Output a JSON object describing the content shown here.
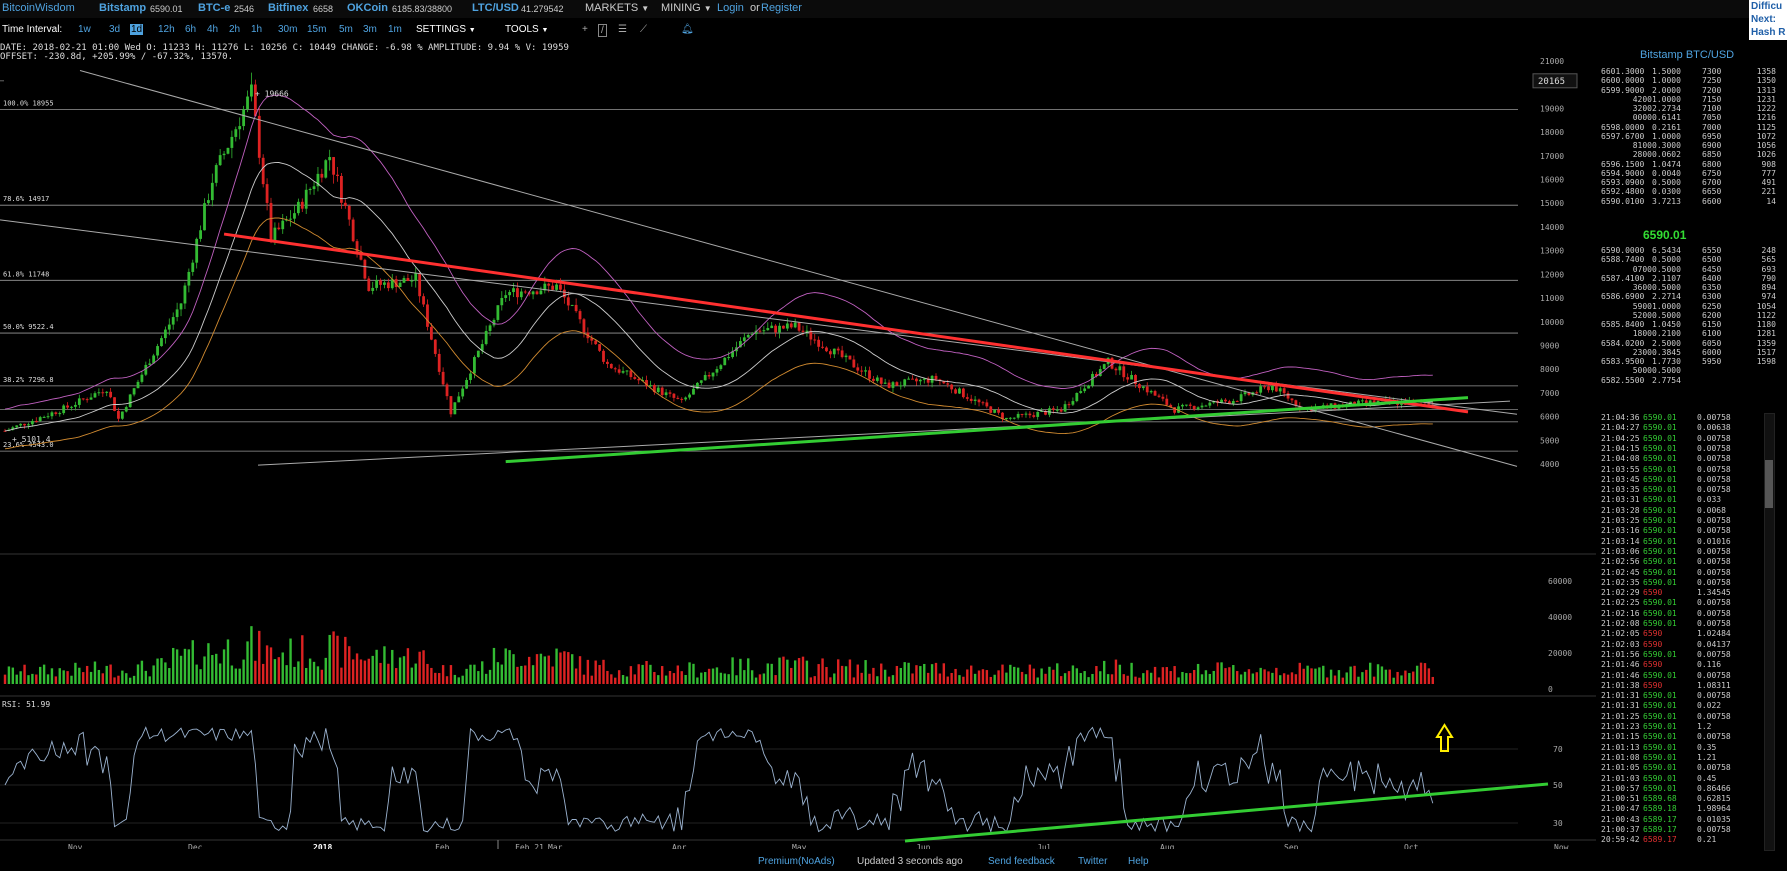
{
  "brand": "BitcoinWisdom",
  "tickers": [
    {
      "name": "Bitstamp",
      "value": "6590.01"
    },
    {
      "name": "BTC-e",
      "value": "2546"
    },
    {
      "name": "Bitfinex",
      "value": "6658"
    },
    {
      "name": "OKCoin",
      "value": "6185.83/38800"
    },
    {
      "name": "LTC/USD",
      "value": "41.279542"
    }
  ],
  "menu": {
    "markets": "MARKETS",
    "mining": "MINING",
    "login": "Login",
    "or": "or",
    "register": "Register"
  },
  "difficulty": {
    "line1": "Difficu",
    "line2": "Next:",
    "line3": "Hash R"
  },
  "toolbar": {
    "label": "Time Interval:",
    "intervals": [
      "1w",
      "3d",
      "1d",
      "12h",
      "6h",
      "4h",
      "2h",
      "1h",
      "30m",
      "15m",
      "5m",
      "3m",
      "1m"
    ],
    "selected": "1d",
    "settings": "SETTINGS",
    "tools": "TOOLS"
  },
  "info": {
    "line1": "DATE: 2018-02-21 01:00 Wed    O: 11233    H: 11276    L: 10256    C: 10449    CHANGE: -6.98 %    AMPLITUDE: 9.94 %    V: 19959",
    "line2": "OFFSET: -230.8d, +205.99% / -67.32%, 13570."
  },
  "chart_data": {
    "type": "line",
    "title": "Bitstamp BTC/USD",
    "interval": "1d",
    "price_axis": [
      21000,
      20000,
      19000,
      18000,
      17000,
      16000,
      15000,
      14000,
      13000,
      12000,
      11000,
      10000,
      9000,
      8000,
      7000,
      6000,
      5000,
      4000
    ],
    "price_ylim": [
      3500,
      21500
    ],
    "current_price_label": "20165",
    "volume_axis": [
      60000,
      40000,
      20000,
      0
    ],
    "rsi_label": "RSI: 51.99",
    "rsi_axis": [
      70,
      50,
      30
    ],
    "x_labels": [
      "Nov",
      "Dec",
      "2018",
      "Feb",
      "Feb 21",
      "Mar",
      "Apr",
      "May",
      "Jun",
      "Jul",
      "Aug",
      "Sep",
      "Oct",
      "Now"
    ],
    "fib_levels": [
      {
        "label": "100.0% 18955",
        "price": 18955
      },
      {
        "label": "78.6% 14917",
        "price": 14917
      },
      {
        "label": "61.8% 11748",
        "price": 11748
      },
      {
        "label": "50.0% 9522.4",
        "price": 9522.4
      },
      {
        "label": "38.2% 7296.8",
        "price": 7296.8
      },
      {
        "label": "23.6% 4543.0",
        "price": 4543.0
      }
    ],
    "annotations": [
      "19666",
      "5101.4"
    ],
    "price_path": [
      [
        "2017-10-15",
        5400
      ],
      [
        "2017-10-31",
        6400
      ],
      [
        "2017-11-10",
        7200
      ],
      [
        "2017-11-13",
        5900
      ],
      [
        "2017-11-20",
        8100
      ],
      [
        "2017-11-29",
        10800
      ],
      [
        "2017-12-07",
        16000
      ],
      [
        "2017-12-17",
        19666
      ],
      [
        "2017-12-22",
        13500
      ],
      [
        "2017-12-29",
        14800
      ],
      [
        "2018-01-06",
        17000
      ],
      [
        "2018-01-16",
        11500
      ],
      [
        "2018-01-28",
        11800
      ],
      [
        "2018-02-06",
        6200
      ],
      [
        "2018-02-20",
        11200
      ],
      [
        "2018-03-05",
        11500
      ],
      [
        "2018-03-18",
        8200
      ],
      [
        "2018-04-06",
        6600
      ],
      [
        "2018-04-24",
        9600
      ],
      [
        "2018-05-05",
        9800
      ],
      [
        "2018-05-28",
        7300
      ],
      [
        "2018-06-10",
        7600
      ],
      [
        "2018-06-28",
        5900
      ],
      [
        "2018-07-12",
        6300
      ],
      [
        "2018-07-24",
        8300
      ],
      [
        "2018-08-10",
        6300
      ],
      [
        "2018-08-25",
        6700
      ],
      [
        "2018-09-04",
        7300
      ],
      [
        "2018-09-12",
        6300
      ],
      [
        "2018-09-30",
        6600
      ],
      [
        "2018-10-15",
        6590
      ]
    ],
    "trendlines": [
      {
        "color": "#ff3030",
        "from": [
          "2017-12-10",
          13700
        ],
        "to": [
          "2018-10-24",
          6200
        ]
      },
      {
        "color": "#33cc33",
        "from": [
          "2018-02-20",
          4100
        ],
        "to": [
          "2018-10-24",
          6800
        ]
      }
    ]
  },
  "orderbook": {
    "title": "Bitstamp BTC/USD",
    "asks": [
      [
        "6601.3000",
        "1.5000",
        "7300",
        "1358"
      ],
      [
        "6600.0000",
        "1.0000",
        "7250",
        "1350"
      ],
      [
        "6599.9000",
        "2.0000",
        "7200",
        "1313"
      ],
      [
        "4200",
        "1.0000",
        "7150",
        "1231"
      ],
      [
        "3200",
        "2.2734",
        "7100",
        "1222"
      ],
      [
        "0000",
        "0.6141",
        "7050",
        "1216"
      ],
      [
        "6598.0000",
        "0.2161",
        "7000",
        "1125"
      ],
      [
        "6597.6700",
        "1.0000",
        "6950",
        "1072"
      ],
      [
        "8100",
        "0.3000",
        "6900",
        "1056"
      ],
      [
        "2800",
        "0.0602",
        "6850",
        "1026"
      ],
      [
        "6596.1500",
        "1.0474",
        "6800",
        "908"
      ],
      [
        "6594.9000",
        "0.0040",
        "6750",
        "777"
      ],
      [
        "6593.0900",
        "0.5000",
        "6700",
        "491"
      ],
      [
        "6592.4800",
        "0.0300",
        "6650",
        "221"
      ],
      [
        "6590.0100",
        "3.7213",
        "6600",
        "14"
      ]
    ],
    "last_price": "6590.01",
    "bids": [
      [
        "6590.0000",
        "6.5434",
        "6550",
        "248"
      ],
      [
        "6588.7400",
        "0.5000",
        "6500",
        "565"
      ],
      [
        "0700",
        "0.5000",
        "6450",
        "693"
      ],
      [
        "6587.4100",
        "2.1107",
        "6400",
        "790"
      ],
      [
        "3600",
        "0.5000",
        "6350",
        "894"
      ],
      [
        "6586.6900",
        "2.2714",
        "6300",
        "974"
      ],
      [
        "5900",
        "1.0000",
        "6250",
        "1054"
      ],
      [
        "5200",
        "0.5000",
        "6200",
        "1122"
      ],
      [
        "6585.8400",
        "1.0450",
        "6150",
        "1180"
      ],
      [
        "1800",
        "0.2100",
        "6100",
        "1281"
      ],
      [
        "6584.0200",
        "2.5000",
        "6050",
        "1359"
      ],
      [
        "2300",
        "0.3845",
        "6000",
        "1517"
      ],
      [
        "6583.9500",
        "1.7730",
        "5950",
        "1598"
      ],
      [
        "5000",
        "0.5000",
        "",
        ""
      ],
      [
        "6582.5500",
        "2.7754",
        "",
        ""
      ]
    ]
  },
  "trades": [
    [
      "21:04:36",
      "6590.01",
      "0.00758",
      "up"
    ],
    [
      "21:04:27",
      "6590.01",
      "0.00638",
      "up"
    ],
    [
      "21:04:25",
      "6590.01",
      "0.00758",
      "up"
    ],
    [
      "21:04:15",
      "6590.01",
      "0.00758",
      "up"
    ],
    [
      "21:04:08",
      "6590.01",
      "0.00758",
      "up"
    ],
    [
      "21:03:55",
      "6590.01",
      "0.00758",
      "up"
    ],
    [
      "21:03:45",
      "6590.01",
      "0.00758",
      "up"
    ],
    [
      "21:03:35",
      "6590.01",
      "0.00758",
      "up"
    ],
    [
      "21:03:31",
      "6590.01",
      "0.033",
      "up"
    ],
    [
      "21:03:28",
      "6590.01",
      "0.0068",
      "up"
    ],
    [
      "21:03:25",
      "6590.01",
      "0.00758",
      "up"
    ],
    [
      "21:03:16",
      "6590.01",
      "0.00758",
      "up"
    ],
    [
      "21:03:14",
      "6590.01",
      "0.01016",
      "up"
    ],
    [
      "21:03:06",
      "6590.01",
      "0.00758",
      "up"
    ],
    [
      "21:02:56",
      "6590.01",
      "0.00758",
      "up"
    ],
    [
      "21:02:45",
      "6590.01",
      "0.00758",
      "up"
    ],
    [
      "21:02:35",
      "6590.01",
      "0.00758",
      "up"
    ],
    [
      "21:02:29",
      "6590",
      "1.34545",
      "dn"
    ],
    [
      "21:02:25",
      "6590.01",
      "0.00758",
      "up"
    ],
    [
      "21:02:16",
      "6590.01",
      "0.00758",
      "up"
    ],
    [
      "21:02:08",
      "6590.01",
      "0.00758",
      "up"
    ],
    [
      "21:02:05",
      "6590",
      "1.02484",
      "dn"
    ],
    [
      "21:02:03",
      "6590",
      "0.04137",
      "dn"
    ],
    [
      "21:01:56",
      "6590.01",
      "0.00758",
      "up"
    ],
    [
      "21:01:46",
      "6590",
      "0.116",
      "dn"
    ],
    [
      "21:01:46",
      "6590.01",
      "0.00758",
      "up"
    ],
    [
      "21:01:38",
      "6590",
      "1.08311",
      "dn"
    ],
    [
      "21:01:31",
      "6590.01",
      "0.00758",
      "up"
    ],
    [
      "21:01:31",
      "6590.01",
      "0.022",
      "up"
    ],
    [
      "21:01:25",
      "6590.01",
      "0.00758",
      "up"
    ],
    [
      "21:01:23",
      "6590.01",
      "1.2",
      "up"
    ],
    [
      "21:01:15",
      "6590.01",
      "0.00758",
      "up"
    ],
    [
      "21:01:13",
      "6590.01",
      "0.35",
      "up"
    ],
    [
      "21:01:08",
      "6590.01",
      "1.21",
      "up"
    ],
    [
      "21:01:05",
      "6590.01",
      "0.00758",
      "up"
    ],
    [
      "21:01:03",
      "6590.01",
      "0.45",
      "up"
    ],
    [
      "21:00:57",
      "6590.01",
      "0.86466",
      "up"
    ],
    [
      "21:00:51",
      "6589.68",
      "0.62815",
      "up"
    ],
    [
      "21:00:47",
      "6589.18",
      "1.98964",
      "up"
    ],
    [
      "21:00:43",
      "6589.17",
      "0.01035",
      "up"
    ],
    [
      "21:00:37",
      "6589.17",
      "0.00758",
      "up"
    ],
    [
      "20:59:42",
      "6589.17",
      "0.21",
      "dn"
    ]
  ],
  "footer": {
    "premium": "Premium(NoAds)",
    "updated": "Updated 3 seconds ago",
    "feedback": "Send feedback",
    "twitter": "Twitter",
    "help": "Help"
  }
}
